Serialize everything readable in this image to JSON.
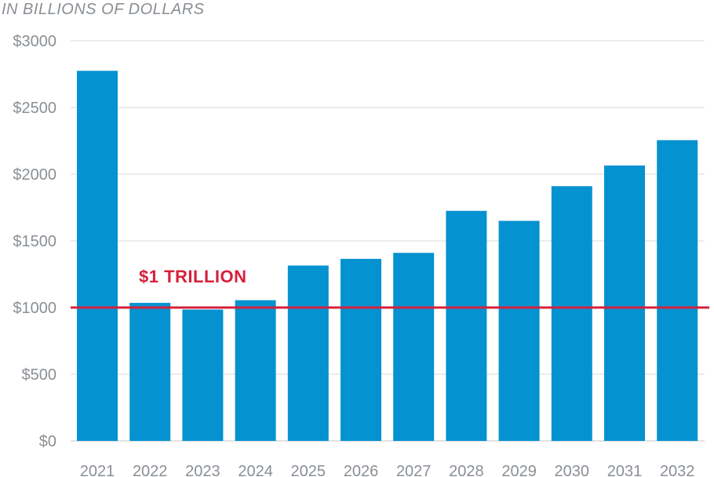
{
  "chart_data": {
    "type": "bar",
    "unit_label": "IN BILLIONS OF DOLLARS",
    "categories": [
      "2021",
      "2022",
      "2023",
      "2024",
      "2025",
      "2026",
      "2027",
      "2028",
      "2029",
      "2030",
      "2031",
      "2032"
    ],
    "values": [
      2775,
      1035,
      985,
      1055,
      1315,
      1365,
      1410,
      1725,
      1650,
      1910,
      2065,
      2255
    ],
    "ylim": [
      0,
      3000
    ],
    "y_ticks": [
      0,
      500,
      1000,
      1500,
      2000,
      2500,
      3000
    ],
    "y_tick_labels": [
      "$0",
      "$500",
      "$1000",
      "$1500",
      "$2000",
      "$2500",
      "$3000"
    ],
    "grid": true,
    "bar_color": "#0592d0",
    "reference_line": {
      "value": 1000,
      "label": "$1 TRILLION",
      "color": "#d6203b"
    }
  }
}
